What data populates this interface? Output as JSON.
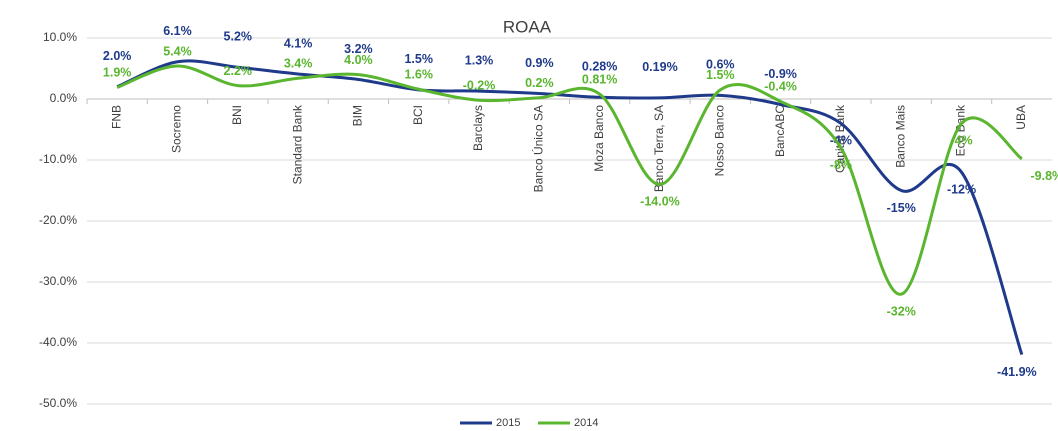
{
  "chart_data": {
    "type": "line",
    "title": "ROAA",
    "categories": [
      "FNB",
      "Socremo",
      "BNI",
      "Standard Bank",
      "BIM",
      "BCI",
      "Barclays",
      "Banco Único SA",
      "Moza Banco",
      "Banco Terra, SA",
      "Nosso Banco",
      "BancABC",
      "Capital Bank",
      "Banco Mais",
      "Eco Bank",
      "UBA"
    ],
    "series": [
      {
        "name": "2015",
        "color": "#1f3a8a",
        "values": [
          2.0,
          6.1,
          5.2,
          4.1,
          3.2,
          1.5,
          1.3,
          0.9,
          0.28,
          0.19,
          0.6,
          -0.9,
          -4,
          -15,
          -12,
          -41.9
        ],
        "value_labels": [
          "2.0%",
          "6.1%",
          "5.2%",
          "4.1%",
          "3.2%",
          "1.5%",
          "1.3%",
          "0.9%",
          "0.28%",
          "0.19%",
          "0.6%",
          "-0.9%",
          "-4%",
          "-15%",
          "-12%",
          "-41.9%"
        ]
      },
      {
        "name": "2014",
        "color": "#5ab52f",
        "values": [
          1.9,
          5.4,
          2.2,
          3.4,
          4.0,
          1.6,
          -0.2,
          0.2,
          0.81,
          -14.0,
          1.5,
          -0.4,
          -8,
          -32,
          -4,
          -9.8
        ],
        "value_labels": [
          "1.9%",
          "5.4%",
          "2.2%",
          "3.4%",
          "4.0%",
          "1.6%",
          "-0.2%",
          "0.2%",
          "0.81%",
          "-14.0%",
          "1.5%",
          "-0.4%",
          "-8%",
          "-32%",
          "-4%",
          "-9.8%"
        ]
      }
    ],
    "ylim": [
      -50,
      10
    ],
    "yticks": [
      {
        "value": -50,
        "label": "-50.0%"
      },
      {
        "value": -40,
        "label": "-40.0%"
      },
      {
        "value": -30,
        "label": "-30.0%"
      },
      {
        "value": -20,
        "label": "-20.0%"
      },
      {
        "value": -10,
        "label": "-10.0%"
      },
      {
        "value": 0,
        "label": "0.0%"
      },
      {
        "value": 10,
        "label": "10.0%"
      }
    ],
    "grid": true,
    "smooth": true,
    "legend": "bottom"
  }
}
